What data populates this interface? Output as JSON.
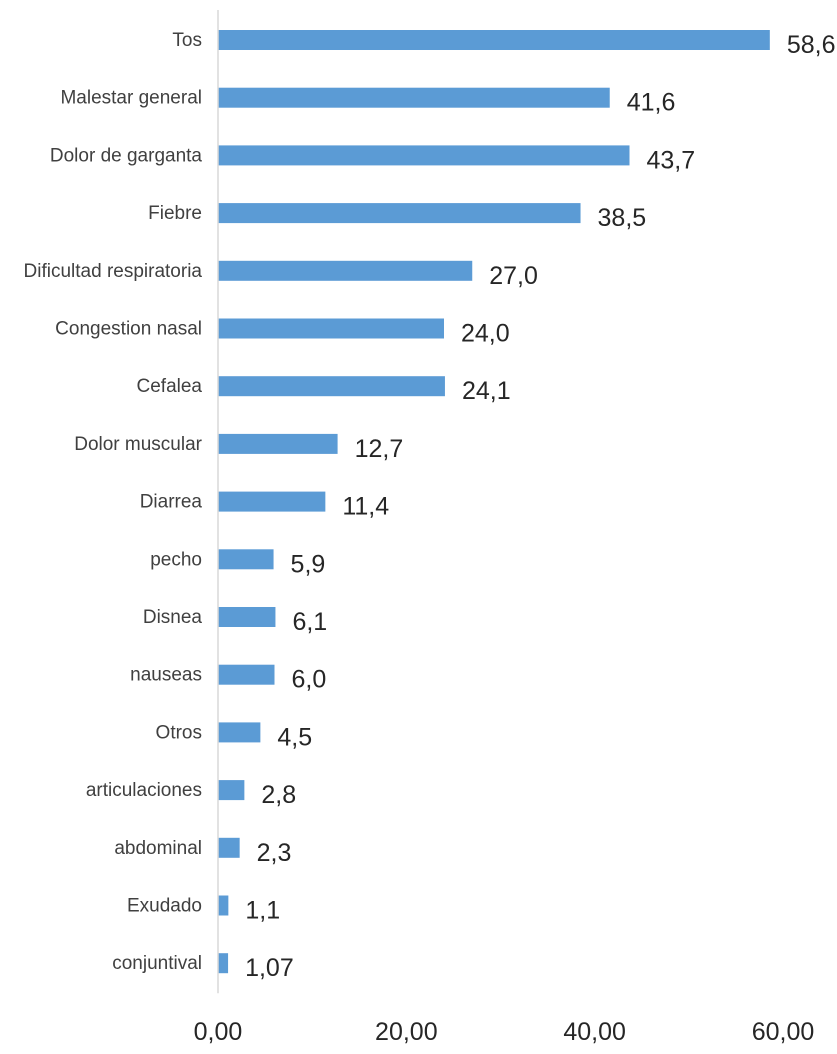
{
  "chart_data": {
    "type": "bar",
    "orientation": "horizontal",
    "categories": [
      "Tos",
      "Malestar general",
      "Dolor de garganta",
      "Fiebre",
      "Dificultad respiratoria",
      "Congestion nasal",
      "Cefalea",
      "Dolor muscular",
      "Diarrea",
      "pecho",
      "Disnea",
      "nauseas",
      "Otros",
      "articulaciones",
      "abdominal",
      "Exudado",
      "conjuntival"
    ],
    "values": [
      58.6,
      41.6,
      43.7,
      38.5,
      27.0,
      24.0,
      24.1,
      12.7,
      11.4,
      5.9,
      6.1,
      6.0,
      4.5,
      2.8,
      2.3,
      1.1,
      1.07
    ],
    "data_labels": [
      "58,6",
      "41,6",
      "43,7",
      "38,5",
      "27,0",
      "24,0",
      "24,1",
      "12,7",
      "11,4",
      "5,9",
      "6,1",
      "6,0",
      "4,5",
      "2,8",
      "2,3",
      "1,1",
      "1,07"
    ],
    "xlim": [
      0,
      60
    ],
    "x_ticks": [
      0,
      20,
      40,
      60
    ],
    "x_tick_labels": [
      "0,00",
      "20,00",
      "40,00",
      "60,00"
    ],
    "grid": false,
    "legend": "none",
    "bar_color": "#5b9bd5",
    "title": "",
    "xlabel": "",
    "ylabel": ""
  }
}
